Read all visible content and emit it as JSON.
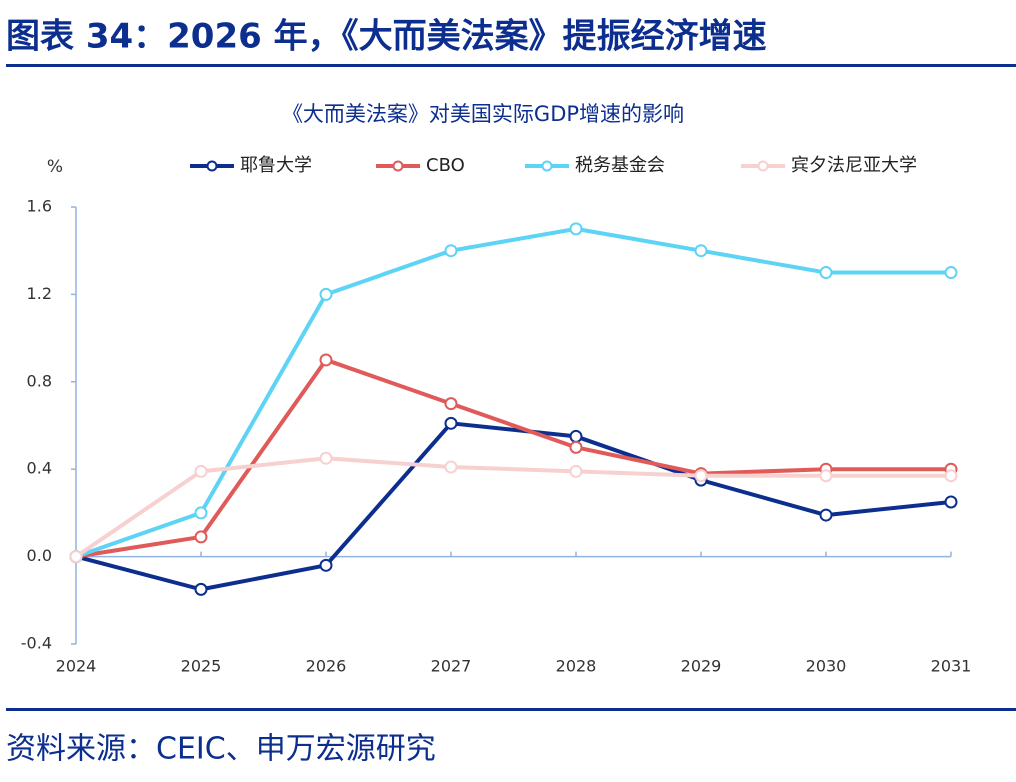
{
  "figure_title": "图表 34：2026 年，《大而美法案》提振经济增速",
  "source": "资料来源：CEIC、申万宏源研究",
  "chart_data": {
    "type": "line",
    "title": "《大而美法案》对美国实际GDP增速的影响",
    "y_label": "%",
    "x": [
      2024,
      2025,
      2026,
      2027,
      2028,
      2029,
      2030,
      2031
    ],
    "xlim": [
      2024,
      2031
    ],
    "xticks": [
      2024,
      2025,
      2026,
      2027,
      2028,
      2029,
      2030,
      2031
    ],
    "ylim": [
      -0.4,
      1.6
    ],
    "yticks": [
      -0.4,
      {
        "value": 0,
        "label": "0.0"
      },
      0.4,
      0.8,
      1.2,
      1.6
    ],
    "grid": false,
    "legend": "top",
    "series": [
      {
        "name": "耶鲁大学",
        "color": "#0b2e8f",
        "values": [
          0,
          -0.15,
          -0.04,
          0.61,
          0.55,
          0.35,
          0.19,
          0.25
        ]
      },
      {
        "name": "CBO",
        "color": "#e05a5a",
        "values": [
          0,
          0.09,
          0.9,
          0.7,
          0.5,
          0.38,
          0.4,
          0.4
        ]
      },
      {
        "name": "税务基金会",
        "color": "#5dd3f5",
        "values": [
          0,
          0.2,
          1.2,
          1.4,
          1.5,
          1.4,
          1.3,
          1.3
        ]
      },
      {
        "name": "宾夕法尼亚大学",
        "color": "#f7d0d0",
        "values": [
          0,
          0.39,
          0.45,
          0.41,
          0.39,
          0.37,
          0.37,
          0.37
        ]
      }
    ]
  }
}
